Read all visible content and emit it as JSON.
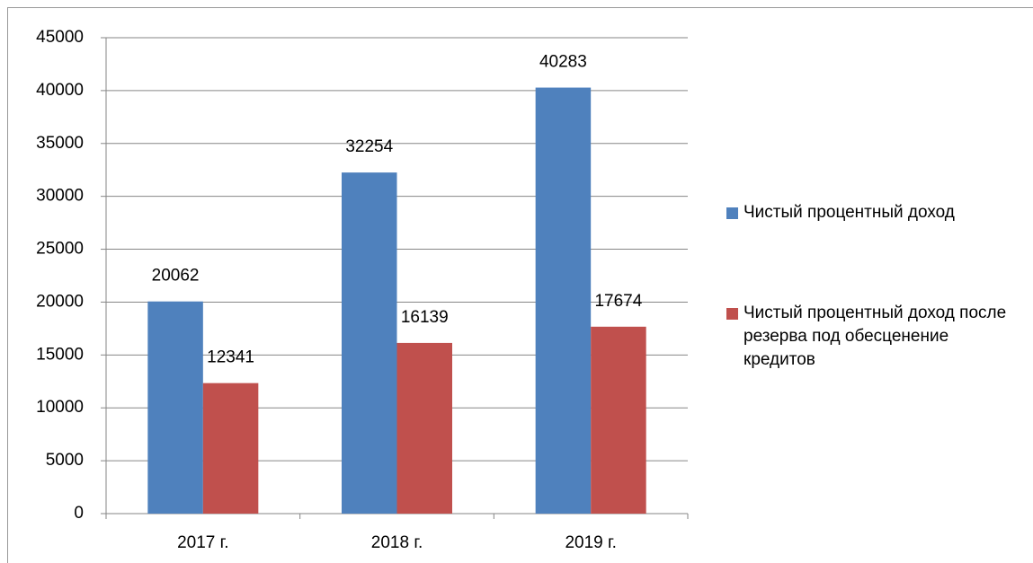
{
  "chart_data": {
    "type": "bar",
    "categories": [
      "2017 г.",
      "2018 г.",
      "2019 г."
    ],
    "series": [
      {
        "name": "Чистый процентный доход",
        "color": "#4f81bd",
        "values": [
          20062,
          32254,
          40283
        ]
      },
      {
        "name": "Чистый процентный доход после резерва под обесценение кредитов",
        "color": "#c0504d",
        "values": [
          12341,
          16139,
          17674
        ]
      }
    ],
    "ylim": [
      0,
      45000
    ],
    "yticks": [
      0,
      5000,
      10000,
      15000,
      20000,
      25000,
      30000,
      35000,
      40000,
      45000
    ],
    "grid": true,
    "legend": "right"
  }
}
